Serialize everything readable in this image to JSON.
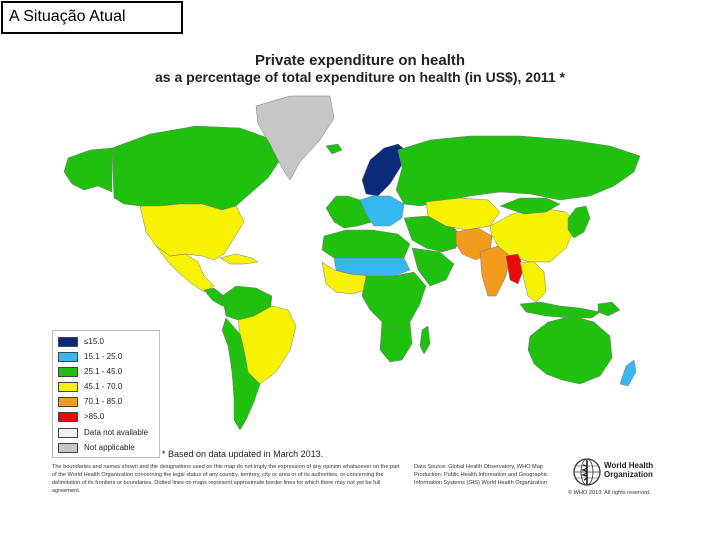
{
  "slide": {
    "title": "A Situação Atual"
  },
  "map": {
    "title_line1": "Private expenditure on health",
    "title_line2": "as a percentage of total expenditure on health (in US$), 2011 *"
  },
  "legend": [
    {
      "label": "≤15.0",
      "color": "#0a2a7a"
    },
    {
      "label": "15.1 - 25.0",
      "color": "#36b7ee"
    },
    {
      "label": "25.1 - 45.0",
      "color": "#1fc10e"
    },
    {
      "label": "45.1 - 70.0",
      "color": "#f6f201"
    },
    {
      "label": "70.1 - 85.0",
      "color": "#f29b1d"
    },
    {
      "label": ">85.0",
      "color": "#e60a0a"
    },
    {
      "label": "Data not available",
      "color": "#f2f2f2"
    },
    {
      "label": "Not applicable",
      "color": "#c6c6c6"
    }
  ],
  "footnote": "* Based on data updated in March 2013.",
  "disclaimer": "The boundaries and names shown and the designations used on this map do not imply the expression of any opinion whatsoever on the part of the World Health Organization concerning the legal status of any country, territory, city or area or of its authorities, or concerning the delimitation of its frontiers or boundaries. Dotted lines on maps represent approximate border lines for which there may not yet be full agreement.",
  "source": "Data Source: Global Health Observatory, WHO Map Production: Public Health Information and Geographic Information Systems (GIS) World Health Organization",
  "organization": "World Health Organization",
  "copyright": "© WHO 2013. All rights reserved.",
  "regions": [
    {
      "name": "alaska",
      "color": "#1fc10e"
    },
    {
      "name": "canada",
      "color": "#1fc10e"
    },
    {
      "name": "greenland",
      "color": "#c6c6c6"
    },
    {
      "name": "usa",
      "color": "#f6f201"
    },
    {
      "name": "mexico",
      "color": "#f6f201"
    },
    {
      "name": "central-america",
      "color": "#1fc10e"
    },
    {
      "name": "caribbean",
      "color": "#f6f201"
    },
    {
      "name": "south-america-north",
      "color": "#1fc10e"
    },
    {
      "name": "brazil",
      "color": "#f6f201"
    },
    {
      "name": "southern-cone",
      "color": "#1fc10e"
    },
    {
      "name": "iceland",
      "color": "#1fc10e"
    },
    {
      "name": "scandinavia",
      "color": "#0a2a7a"
    },
    {
      "name": "western-europe",
      "color": "#1fc10e"
    },
    {
      "name": "eastern-europe",
      "color": "#36b7ee"
    },
    {
      "name": "russia",
      "color": "#1fc10e"
    },
    {
      "name": "north-africa",
      "color": "#1fc10e"
    },
    {
      "name": "sahel",
      "color": "#36b7ee"
    },
    {
      "name": "west-africa",
      "color": "#f6f201"
    },
    {
      "name": "central-east-africa",
      "color": "#1fc10e"
    },
    {
      "name": "southern-africa",
      "color": "#1fc10e"
    },
    {
      "name": "madagascar",
      "color": "#1fc10e"
    },
    {
      "name": "middle-east",
      "color": "#1fc10e"
    },
    {
      "name": "arabian-peninsula",
      "color": "#1fc10e"
    },
    {
      "name": "central-asia",
      "color": "#f6f201"
    },
    {
      "name": "pakistan-afghanistan",
      "color": "#f29b1d"
    },
    {
      "name": "india",
      "color": "#f29b1d"
    },
    {
      "name": "china",
      "color": "#f6f201"
    },
    {
      "name": "mongolia",
      "color": "#1fc10e"
    },
    {
      "name": "myanmar",
      "color": "#e60a0a"
    },
    {
      "name": "southeast-asia",
      "color": "#f6f201"
    },
    {
      "name": "japan-korea",
      "color": "#1fc10e"
    },
    {
      "name": "indonesia",
      "color": "#1fc10e"
    },
    {
      "name": "png",
      "color": "#1fc10e"
    },
    {
      "name": "australia",
      "color": "#1fc10e"
    },
    {
      "name": "new-zealand",
      "color": "#36b7ee"
    }
  ]
}
